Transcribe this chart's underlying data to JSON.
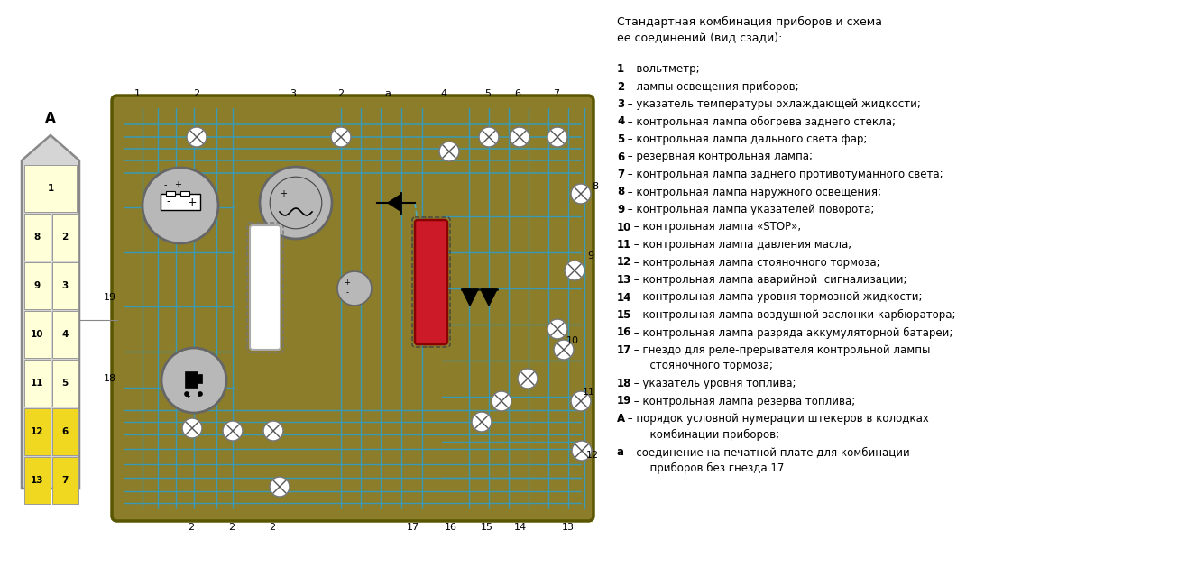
{
  "bg_color": "#ffffff",
  "board_color": "#8B7D2A",
  "wire_color": "#3a9ab5",
  "title_line1": "Стандартная комбинация приборов и схема",
  "title_line2": "ее соединений (вид сзади):",
  "legend": [
    [
      "1",
      " – вольтметр;",
      false
    ],
    [
      "2",
      " – лампы освещения приборов;",
      false
    ],
    [
      "3",
      " – указатель температуры охлаждающей жидкости;",
      true
    ],
    [
      "4",
      " – контрольная лампа обогрева заднего стекла;",
      false
    ],
    [
      "5",
      " – контрольная лампа дального света фар;",
      false
    ],
    [
      "6",
      " – резервная контрольная лампа;",
      false
    ],
    [
      "7",
      " – контрольная лампа заднего противотуманного света;",
      true
    ],
    [
      "8",
      " – контрольная лампа наружного освещения;",
      false
    ],
    [
      "9",
      " – контрольная лампа указателей поворота;",
      false
    ],
    [
      "10",
      " – контрольная лампа «STOP»;",
      false
    ],
    [
      "11",
      " – контрольная лампа давления масла;",
      true
    ],
    [
      "12",
      " – контрольная лампа стояночного тормоза;",
      false
    ],
    [
      "13",
      " – контрольная лампа аварийной  сигнализации;",
      false
    ],
    [
      "14",
      " – контрольная лампа уровня тормозной жидкости;",
      false
    ],
    [
      "15",
      " – контрольная лампа воздушной заслонки карбюратора;",
      false
    ],
    [
      "16",
      " – контрольная лампа разряда аккумуляторной батареи;",
      true
    ],
    [
      "17",
      " – гнездо для реле-прерывателя контрольной лампы\n      стояночного тормоза;",
      false
    ],
    [
      "18",
      " – указатель уровня топлива;",
      true
    ],
    [
      "19",
      " – контрольная лампа резерва топлива;",
      false
    ],
    [
      "А",
      " – порядок условной нумерации штекеров в колодках\n      комбинации приборов;",
      false
    ],
    [
      "а",
      " – соединение на печатной плате для комбинации\n      приборов без гнезда 17.",
      false
    ]
  ]
}
